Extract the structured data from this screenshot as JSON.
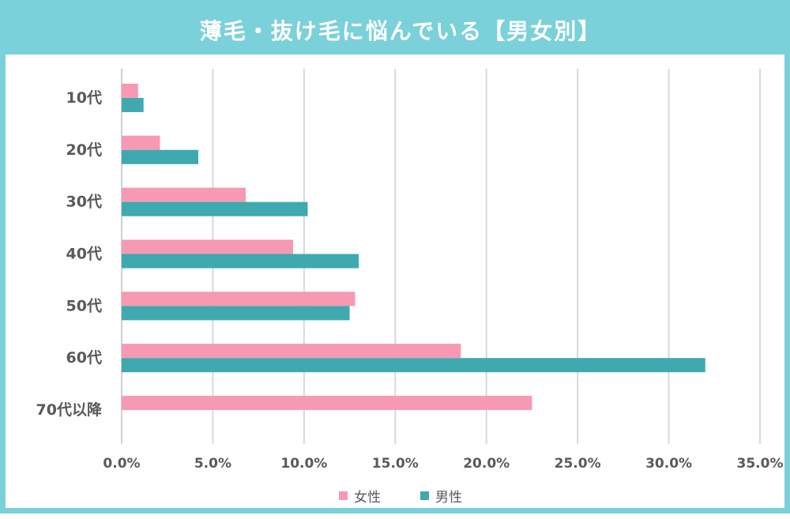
{
  "colors": {
    "frame": "#7ad1d9",
    "female": "#f799b3",
    "male": "#3fa9b0",
    "grid": "#d9d9d9",
    "axis": "#bfbfbf"
  },
  "chart_data": {
    "type": "bar",
    "orientation": "horizontal",
    "title": "薄毛・抜け毛に悩んでいる【男女別】",
    "categories": [
      "10代",
      "20代",
      "30代",
      "40代",
      "50代",
      "60代",
      "70代以降"
    ],
    "series": [
      {
        "name": "女性",
        "values": [
          0.9,
          2.1,
          6.8,
          9.4,
          12.8,
          18.6,
          22.5
        ]
      },
      {
        "name": "男性",
        "values": [
          1.2,
          4.2,
          10.2,
          13.0,
          12.5,
          32.0,
          0
        ]
      }
    ],
    "xlim": [
      0,
      35
    ],
    "xticks": [
      "0.0%",
      "5.0%",
      "10.0%",
      "15.0%",
      "20.0%",
      "25.0%",
      "30.0%",
      "35.0%"
    ],
    "grid": true,
    "legend": "bottom"
  }
}
